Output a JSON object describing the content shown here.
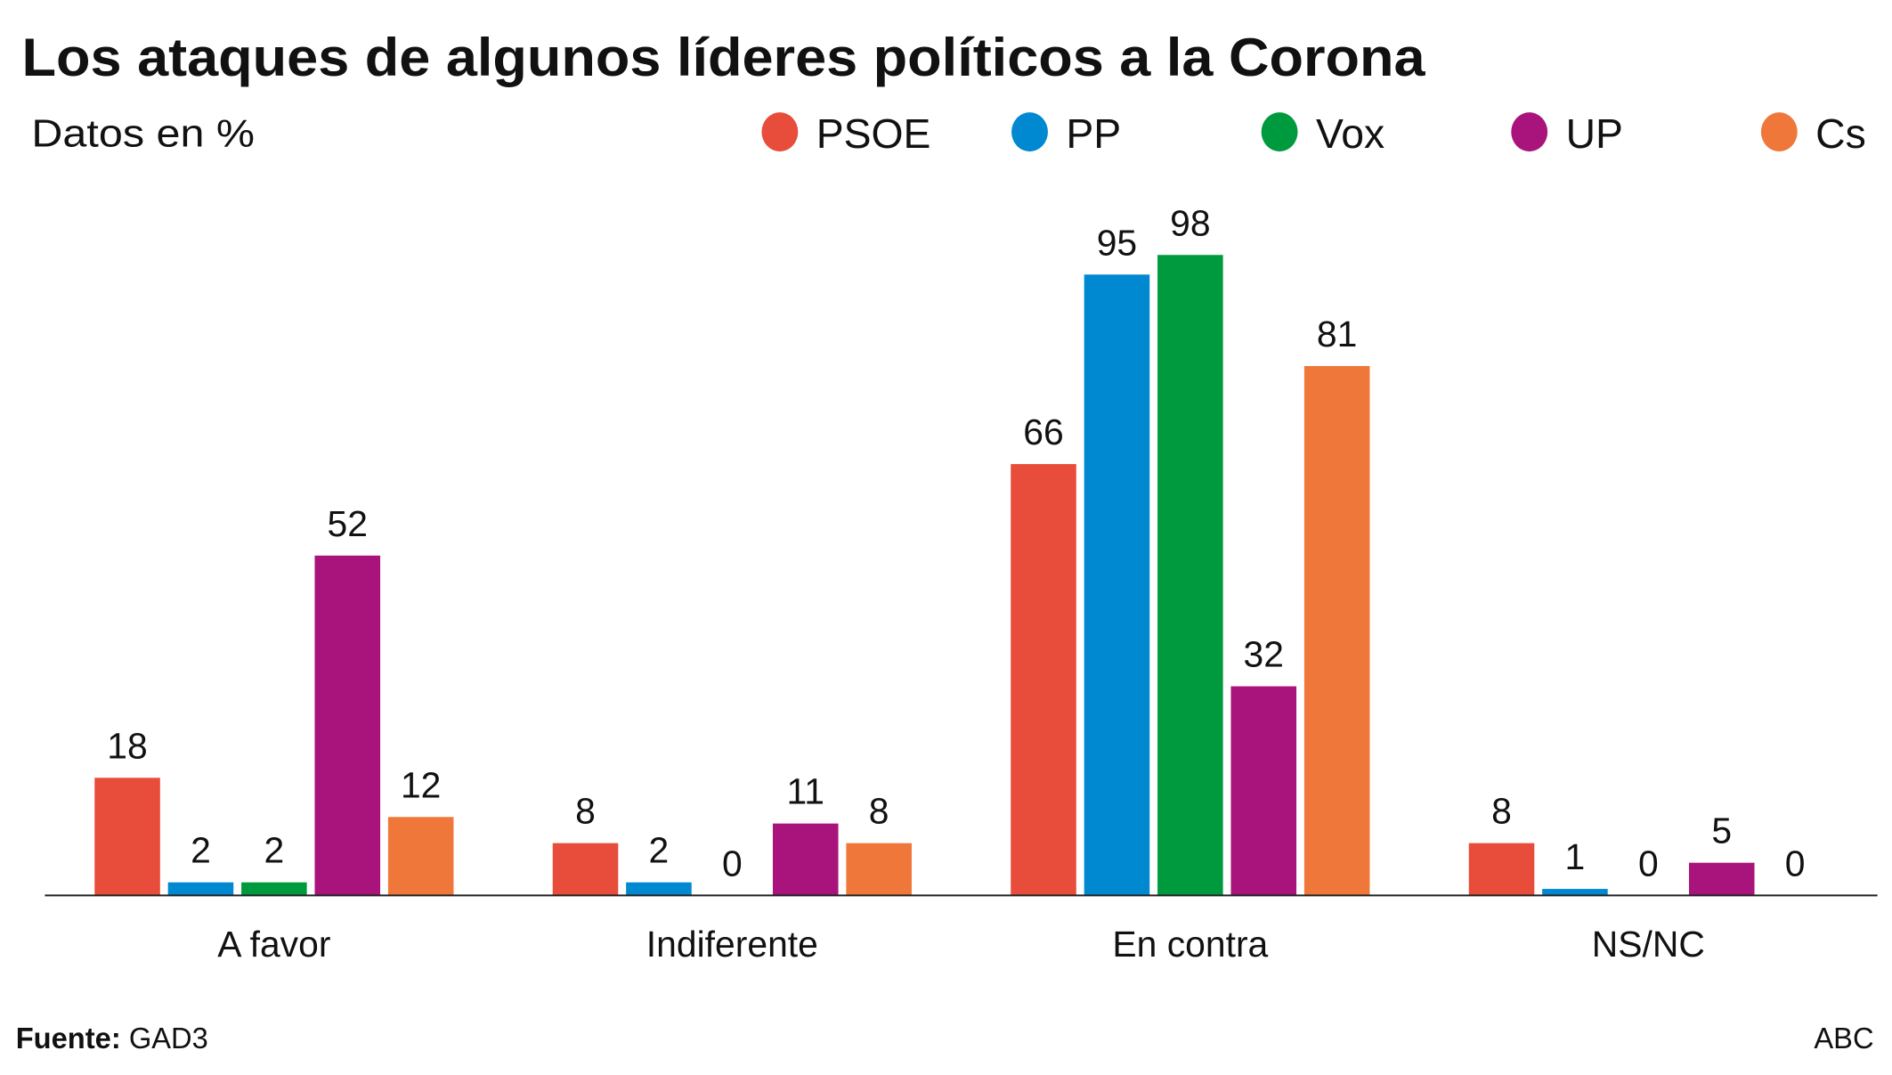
{
  "chart_data": {
    "type": "bar",
    "title": "Los ataques de algunos líderes políticos a la Corona",
    "subtitle": "Datos en %",
    "categories": [
      "A favor",
      "Indiferente",
      "En contra",
      "NS/NC"
    ],
    "series": [
      {
        "name": "PSOE",
        "color": "#e84c3a",
        "values": [
          18,
          8,
          66,
          8
        ]
      },
      {
        "name": "PP",
        "color": "#0088d1",
        "values": [
          2,
          2,
          95,
          1
        ]
      },
      {
        "name": "Vox",
        "color": "#009a3e",
        "values": [
          2,
          0,
          98,
          0
        ]
      },
      {
        "name": "UP",
        "color": "#a8147b",
        "values": [
          52,
          11,
          32,
          5
        ]
      },
      {
        "name": "Cs",
        "color": "#ef773a",
        "values": [
          12,
          8,
          81,
          0
        ]
      }
    ],
    "ylim": [
      0,
      100
    ],
    "grid": false,
    "legend": "top-right",
    "source_label": "Fuente:",
    "source": "GAD3",
    "credit": "ABC"
  }
}
